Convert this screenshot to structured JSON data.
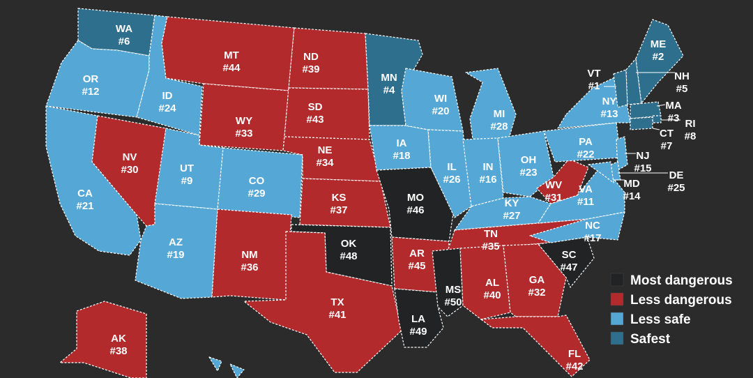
{
  "colors": {
    "background": "#2b2b2b",
    "most_dangerous": "#222324",
    "less_dangerous": "#b22a2c",
    "less_safe": "#55a8d6",
    "safest": "#2f6f8e"
  },
  "legend": [
    {
      "key": "most_dangerous",
      "label": "Most dangerous",
      "color": "#222324"
    },
    {
      "key": "less_dangerous",
      "label": "Less dangerous",
      "color": "#b22a2c"
    },
    {
      "key": "less_safe",
      "label": "Less safe",
      "color": "#55a8d6"
    },
    {
      "key": "safest",
      "label": "Safest",
      "color": "#2f6f8e"
    }
  ],
  "states": [
    {
      "abbr": "WA",
      "rank": "#6",
      "category": "safest"
    },
    {
      "abbr": "OR",
      "rank": "#12",
      "category": "less_safe"
    },
    {
      "abbr": "CA",
      "rank": "#21",
      "category": "less_safe"
    },
    {
      "abbr": "ID",
      "rank": "#24",
      "category": "less_safe"
    },
    {
      "abbr": "NV",
      "rank": "#30",
      "category": "less_dangerous"
    },
    {
      "abbr": "MT",
      "rank": "#44",
      "category": "less_dangerous"
    },
    {
      "abbr": "WY",
      "rank": "#33",
      "category": "less_dangerous"
    },
    {
      "abbr": "UT",
      "rank": "#9",
      "category": "less_safe"
    },
    {
      "abbr": "CO",
      "rank": "#29",
      "category": "less_safe"
    },
    {
      "abbr": "AZ",
      "rank": "#19",
      "category": "less_safe"
    },
    {
      "abbr": "NM",
      "rank": "#36",
      "category": "less_dangerous"
    },
    {
      "abbr": "ND",
      "rank": "#39",
      "category": "less_dangerous"
    },
    {
      "abbr": "SD",
      "rank": "#43",
      "category": "less_dangerous"
    },
    {
      "abbr": "NE",
      "rank": "#34",
      "category": "less_dangerous"
    },
    {
      "abbr": "KS",
      "rank": "#37",
      "category": "less_dangerous"
    },
    {
      "abbr": "OK",
      "rank": "#48",
      "category": "most_dangerous"
    },
    {
      "abbr": "TX",
      "rank": "#41",
      "category": "less_dangerous"
    },
    {
      "abbr": "MN",
      "rank": "#4",
      "category": "safest"
    },
    {
      "abbr": "IA",
      "rank": "#18",
      "category": "less_safe"
    },
    {
      "abbr": "MO",
      "rank": "#46",
      "category": "most_dangerous"
    },
    {
      "abbr": "AR",
      "rank": "#45",
      "category": "less_dangerous"
    },
    {
      "abbr": "LA",
      "rank": "#49",
      "category": "most_dangerous"
    },
    {
      "abbr": "WI",
      "rank": "#20",
      "category": "less_safe"
    },
    {
      "abbr": "IL",
      "rank": "#26",
      "category": "less_safe"
    },
    {
      "abbr": "MI",
      "rank": "#28",
      "category": "less_safe"
    },
    {
      "abbr": "IN",
      "rank": "#16",
      "category": "less_safe"
    },
    {
      "abbr": "OH",
      "rank": "#23",
      "category": "less_safe"
    },
    {
      "abbr": "KY",
      "rank": "#27",
      "category": "less_safe"
    },
    {
      "abbr": "TN",
      "rank": "#35",
      "category": "less_dangerous"
    },
    {
      "abbr": "MS",
      "rank": "#50",
      "category": "most_dangerous"
    },
    {
      "abbr": "AL",
      "rank": "#40",
      "category": "less_dangerous"
    },
    {
      "abbr": "GA",
      "rank": "#32",
      "category": "less_dangerous"
    },
    {
      "abbr": "FL",
      "rank": "#42",
      "category": "less_dangerous"
    },
    {
      "abbr": "SC",
      "rank": "#47",
      "category": "most_dangerous"
    },
    {
      "abbr": "NC",
      "rank": "#17",
      "category": "less_safe"
    },
    {
      "abbr": "VA",
      "rank": "#11",
      "category": "less_safe"
    },
    {
      "abbr": "WV",
      "rank": "#31",
      "category": "less_dangerous"
    },
    {
      "abbr": "PA",
      "rank": "#22",
      "category": "less_safe"
    },
    {
      "abbr": "NY",
      "rank": "#13",
      "category": "less_safe"
    },
    {
      "abbr": "VT",
      "rank": "#1",
      "category": "safest"
    },
    {
      "abbr": "NH",
      "rank": "#5",
      "category": "safest"
    },
    {
      "abbr": "ME",
      "rank": "#2",
      "category": "safest"
    },
    {
      "abbr": "MA",
      "rank": "#3",
      "category": "safest"
    },
    {
      "abbr": "RI",
      "rank": "#8",
      "category": "safest"
    },
    {
      "abbr": "CT",
      "rank": "#7",
      "category": "safest"
    },
    {
      "abbr": "NJ",
      "rank": "#15",
      "category": "less_safe"
    },
    {
      "abbr": "DE",
      "rank": "#25",
      "category": "less_safe"
    },
    {
      "abbr": "MD",
      "rank": "#14",
      "category": "less_safe"
    },
    {
      "abbr": "AK",
      "rank": "#38",
      "category": "less_dangerous"
    },
    {
      "abbr": "HI",
      "rank": "",
      "category": "less_safe"
    }
  ]
}
